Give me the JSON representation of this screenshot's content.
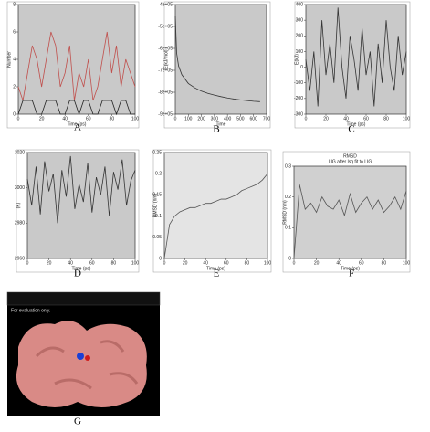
{
  "chart_data": [
    {
      "type": "line",
      "panel": "A",
      "xlabel": "Time (ps)",
      "ylabel": "Number",
      "background": "#c9c9c9",
      "x": [
        0,
        4,
        8,
        12,
        16,
        20,
        24,
        28,
        32,
        36,
        40,
        44,
        48,
        52,
        56,
        60,
        64,
        68,
        72,
        76,
        80,
        84,
        88,
        92,
        96,
        100
      ],
      "series": [
        {
          "color": "#c0504d",
          "values": [
            2,
            1,
            3,
            5,
            4,
            2,
            4,
            6,
            5,
            2,
            3,
            5,
            1,
            3,
            2,
            4,
            1,
            2,
            4,
            6,
            3,
            5,
            2,
            4,
            3,
            2
          ]
        },
        {
          "color": "#222222",
          "values": [
            0,
            1,
            1,
            1,
            0,
            0,
            1,
            1,
            1,
            0,
            0,
            1,
            1,
            0,
            1,
            1,
            0,
            0,
            1,
            1,
            1,
            0,
            1,
            1,
            0,
            0
          ]
        }
      ],
      "xlim": [
        0,
        100
      ],
      "xticks": [
        0,
        20,
        40,
        60,
        80,
        100
      ],
      "ylim": [
        0,
        8
      ],
      "yticks": [
        0,
        2,
        4,
        6,
        8
      ]
    },
    {
      "type": "line",
      "panel": "B",
      "xlabel": "Time",
      "ylabel": "E(kJ/mol)",
      "background": "#c9c9c9",
      "x": [
        0,
        10,
        25,
        50,
        75,
        100,
        150,
        200,
        250,
        300,
        350,
        400,
        450,
        500,
        550,
        600,
        650
      ],
      "series": [
        {
          "color": "#333333",
          "values": [
            -450000,
            -620000,
            -680000,
            -720000,
            -740000,
            -760000,
            -780000,
            -795000,
            -805000,
            -813000,
            -820000,
            -826000,
            -831000,
            -835000,
            -838000,
            -841000,
            -843000
          ]
        }
      ],
      "xlim": [
        0,
        700
      ],
      "xticks": [
        0,
        100,
        200,
        300,
        400,
        500,
        600,
        700
      ],
      "ylim": [
        -900000,
        -400000
      ],
      "yticks": [
        {
          "value": -900000,
          "label": "-9e+05"
        },
        {
          "value": -800000,
          "label": "-8e+05"
        },
        {
          "value": -700000,
          "label": "-7e+05"
        },
        {
          "value": -600000,
          "label": "-6e+05"
        },
        {
          "value": -500000,
          "label": "-5e+05"
        },
        {
          "value": -400000,
          "label": "-4e+05"
        }
      ]
    },
    {
      "type": "line",
      "panel": "C",
      "xlabel": "Time (ps)",
      "ylabel": "E(kJ)",
      "background": "#c9c9c9",
      "x": [
        0,
        4,
        8,
        12,
        16,
        20,
        24,
        28,
        32,
        36,
        40,
        44,
        48,
        52,
        56,
        60,
        64,
        68,
        72,
        76,
        80,
        84,
        88,
        92,
        96,
        100
      ],
      "series": [
        {
          "color": "#333333",
          "values": [
            50,
            -150,
            100,
            -250,
            300,
            -50,
            150,
            -100,
            380,
            0,
            -200,
            200,
            50,
            -150,
            250,
            -50,
            100,
            -250,
            150,
            -100,
            300,
            0,
            -150,
            200,
            -50,
            100
          ]
        }
      ],
      "xlim": [
        0,
        100
      ],
      "xticks": [
        0,
        20,
        40,
        60,
        80,
        100
      ],
      "ylim": [
        -300,
        400
      ],
      "yticks": [
        -300,
        -200,
        -100,
        0,
        100,
        200,
        300,
        400
      ]
    },
    {
      "type": "line",
      "panel": "D",
      "xlabel": "Time (ps)",
      "ylabel": "(K)",
      "background": "#c9c9c9",
      "x": [
        0,
        4,
        8,
        12,
        16,
        20,
        24,
        28,
        32,
        36,
        40,
        44,
        48,
        52,
        56,
        60,
        64,
        68,
        72,
        76,
        80,
        84,
        88,
        92,
        96,
        100
      ],
      "series": [
        {
          "color": "#333333",
          "values": [
            3005,
            2990,
            3012,
            2985,
            3015,
            2998,
            3008,
            2980,
            3010,
            2995,
            3018,
            2988,
            3002,
            2992,
            3014,
            2986,
            3006,
            2996,
            3012,
            2984,
            3009,
            2999,
            3016,
            2990,
            3004,
            3010
          ]
        }
      ],
      "xlim": [
        0,
        100
      ],
      "xticks": [
        0,
        20,
        40,
        60,
        80,
        100
      ],
      "ylim": [
        2960,
        3020
      ],
      "yticks": [
        2960,
        2980,
        3000,
        3020
      ]
    },
    {
      "type": "line",
      "panel": "E",
      "xlabel": "Time (ps)",
      "ylabel": "RMSD (nm)",
      "background": "#e4e4e4",
      "x": [
        0,
        5,
        10,
        15,
        20,
        25,
        30,
        35,
        40,
        45,
        50,
        55,
        60,
        65,
        70,
        75,
        80,
        85,
        90,
        95,
        100
      ],
      "series": [
        {
          "color": "#555555",
          "values": [
            0,
            0.08,
            0.1,
            0.11,
            0.115,
            0.12,
            0.12,
            0.125,
            0.13,
            0.13,
            0.135,
            0.14,
            0.14,
            0.145,
            0.15,
            0.16,
            0.165,
            0.17,
            0.175,
            0.185,
            0.2
          ]
        }
      ],
      "xlim": [
        0,
        100
      ],
      "xticks": [
        0,
        20,
        40,
        60,
        80,
        100
      ],
      "ylim": [
        0,
        0.25
      ],
      "yticks": [
        0,
        0.05,
        0.1,
        0.15,
        0.2,
        0.25
      ]
    },
    {
      "type": "line",
      "panel": "F",
      "title": "RMSD",
      "subtitle": "LIG after lsq fit to LIG",
      "xlabel": "Time (ps)",
      "ylabel": "RMSD (nm)",
      "background": "#d0d0d0",
      "x": [
        0,
        5,
        10,
        15,
        20,
        25,
        30,
        35,
        40,
        45,
        50,
        55,
        60,
        65,
        70,
        75,
        80,
        85,
        90,
        95,
        100
      ],
      "series": [
        {
          "color": "#555555",
          "values": [
            0,
            0.24,
            0.16,
            0.18,
            0.15,
            0.2,
            0.17,
            0.16,
            0.19,
            0.14,
            0.21,
            0.15,
            0.18,
            0.2,
            0.16,
            0.19,
            0.15,
            0.17,
            0.2,
            0.16,
            0.22
          ]
        }
      ],
      "xlim": [
        0,
        100
      ],
      "xticks": [
        0,
        20,
        40,
        60,
        80,
        100
      ],
      "ylim": [
        0,
        0.3
      ],
      "yticks": [
        0,
        0.1,
        0.2,
        0.3
      ]
    }
  ],
  "figure_g": {
    "panel": "G",
    "notes": [
      "For evaluation only."
    ]
  }
}
